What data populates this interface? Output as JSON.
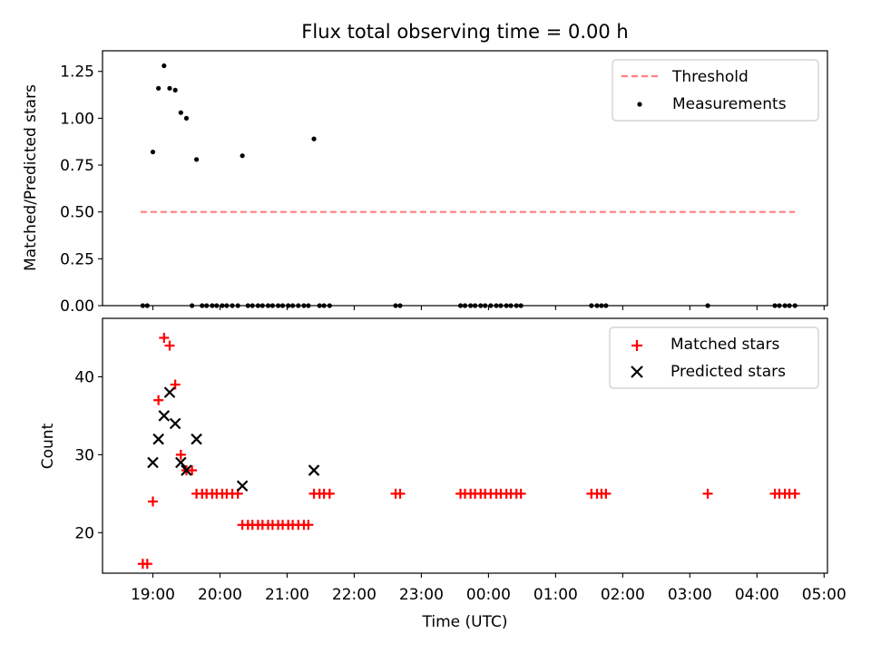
{
  "chart_data": [
    {
      "type": "scatter",
      "title": "Flux total observing time = 0.00 h",
      "xlabel": "",
      "ylabel": "Matched/Predicted stars",
      "ylim": [
        0.0,
        1.36
      ],
      "yticks": [
        "0.00",
        "0.25",
        "0.50",
        "0.75",
        "1.00",
        "1.25"
      ],
      "legend": "top-right",
      "grid": false,
      "threshold": {
        "name": "Threshold",
        "value": 0.5,
        "x_range": [
          "18:49",
          "04:34"
        ],
        "color": "#ff7f7f"
      },
      "series": [
        {
          "name": "Measurements",
          "color": "#000000",
          "points": [
            [
              "18:51",
              0
            ],
            [
              "18:55",
              0
            ],
            [
              "19:00",
              0.82
            ],
            [
              "19:05",
              1.16
            ],
            [
              "19:10",
              1.28
            ],
            [
              "19:15",
              1.16
            ],
            [
              "19:20",
              1.15
            ],
            [
              "19:25",
              1.03
            ],
            [
              "19:30",
              1.0
            ],
            [
              "19:35",
              0
            ],
            [
              "19:39",
              0.78
            ],
            [
              "19:44",
              0
            ],
            [
              "19:48",
              0
            ],
            [
              "19:53",
              0
            ],
            [
              "19:57",
              0
            ],
            [
              "20:02",
              0
            ],
            [
              "20:06",
              0
            ],
            [
              "20:11",
              0
            ],
            [
              "20:16",
              0
            ],
            [
              "20:20",
              0.8
            ],
            [
              "20:25",
              0
            ],
            [
              "20:29",
              0
            ],
            [
              "20:34",
              0
            ],
            [
              "20:38",
              0
            ],
            [
              "20:43",
              0
            ],
            [
              "20:47",
              0
            ],
            [
              "20:52",
              0
            ],
            [
              "20:56",
              0
            ],
            [
              "21:01",
              0
            ],
            [
              "21:05",
              0
            ],
            [
              "21:10",
              0
            ],
            [
              "21:15",
              0
            ],
            [
              "21:19",
              0
            ],
            [
              "21:24",
              0.89
            ],
            [
              "21:29",
              0
            ],
            [
              "21:33",
              0
            ],
            [
              "21:38",
              0
            ],
            [
              "22:37",
              0
            ],
            [
              "22:41",
              0
            ],
            [
              "23:35",
              0
            ],
            [
              "23:39",
              0
            ],
            [
              "23:44",
              0
            ],
            [
              "23:48",
              0
            ],
            [
              "23:53",
              0
            ],
            [
              "23:57",
              0
            ],
            [
              "00:02",
              0
            ],
            [
              "00:07",
              0
            ],
            [
              "00:11",
              0
            ],
            [
              "00:16",
              0
            ],
            [
              "00:20",
              0
            ],
            [
              "00:25",
              0
            ],
            [
              "00:29",
              0
            ],
            [
              "01:32",
              0
            ],
            [
              "01:37",
              0
            ],
            [
              "01:41",
              0
            ],
            [
              "01:45",
              0
            ],
            [
              "03:16",
              0
            ],
            [
              "04:16",
              0
            ],
            [
              "04:20",
              0
            ],
            [
              "04:25",
              0
            ],
            [
              "04:29",
              0
            ],
            [
              "04:34",
              0
            ]
          ]
        }
      ]
    },
    {
      "type": "scatter",
      "title": "",
      "xlabel": "Time (UTC)",
      "ylabel": "Count",
      "ylim": [
        14.8,
        47.5
      ],
      "yticks": [
        "20",
        "30",
        "40"
      ],
      "xticks": [
        "19:00",
        "20:00",
        "21:00",
        "22:00",
        "23:00",
        "00:00",
        "01:00",
        "02:00",
        "03:00",
        "04:00",
        "05:00"
      ],
      "legend": "top-right",
      "grid": false,
      "series": [
        {
          "name": "Matched stars",
          "marker": "+",
          "color": "#ff0000",
          "points": [
            [
              "18:51",
              16
            ],
            [
              "18:55",
              16
            ],
            [
              "19:00",
              24
            ],
            [
              "19:05",
              37
            ],
            [
              "19:10",
              45
            ],
            [
              "19:15",
              44
            ],
            [
              "19:20",
              39
            ],
            [
              "19:25",
              30
            ],
            [
              "19:30",
              28
            ],
            [
              "19:35",
              28
            ],
            [
              "19:39",
              25
            ],
            [
              "19:44",
              25
            ],
            [
              "19:48",
              25
            ],
            [
              "19:53",
              25
            ],
            [
              "19:57",
              25
            ],
            [
              "20:02",
              25
            ],
            [
              "20:06",
              25
            ],
            [
              "20:11",
              25
            ],
            [
              "20:16",
              25
            ],
            [
              "20:20",
              21
            ],
            [
              "20:25",
              21
            ],
            [
              "20:29",
              21
            ],
            [
              "20:34",
              21
            ],
            [
              "20:38",
              21
            ],
            [
              "20:43",
              21
            ],
            [
              "20:47",
              21
            ],
            [
              "20:52",
              21
            ],
            [
              "20:56",
              21
            ],
            [
              "21:01",
              21
            ],
            [
              "21:05",
              21
            ],
            [
              "21:10",
              21
            ],
            [
              "21:15",
              21
            ],
            [
              "21:19",
              21
            ],
            [
              "21:24",
              25
            ],
            [
              "21:29",
              25
            ],
            [
              "21:33",
              25
            ],
            [
              "21:38",
              25
            ],
            [
              "22:37",
              25
            ],
            [
              "22:41",
              25
            ],
            [
              "23:35",
              25
            ],
            [
              "23:39",
              25
            ],
            [
              "23:44",
              25
            ],
            [
              "23:48",
              25
            ],
            [
              "23:53",
              25
            ],
            [
              "23:57",
              25
            ],
            [
              "00:02",
              25
            ],
            [
              "00:07",
              25
            ],
            [
              "00:11",
              25
            ],
            [
              "00:16",
              25
            ],
            [
              "00:20",
              25
            ],
            [
              "00:25",
              25
            ],
            [
              "00:29",
              25
            ],
            [
              "01:32",
              25
            ],
            [
              "01:37",
              25
            ],
            [
              "01:41",
              25
            ],
            [
              "01:45",
              25
            ],
            [
              "03:16",
              25
            ],
            [
              "04:16",
              25
            ],
            [
              "04:20",
              25
            ],
            [
              "04:25",
              25
            ],
            [
              "04:29",
              25
            ],
            [
              "04:34",
              25
            ]
          ]
        },
        {
          "name": "Predicted stars",
          "marker": "x",
          "color": "#000000",
          "points": [
            [
              "19:00",
              29
            ],
            [
              "19:05",
              32
            ],
            [
              "19:10",
              35
            ],
            [
              "19:15",
              38
            ],
            [
              "19:20",
              34
            ],
            [
              "19:25",
              29
            ],
            [
              "19:30",
              28
            ],
            [
              "19:39",
              32
            ],
            [
              "20:20",
              26
            ],
            [
              "21:24",
              28
            ]
          ]
        }
      ]
    }
  ]
}
